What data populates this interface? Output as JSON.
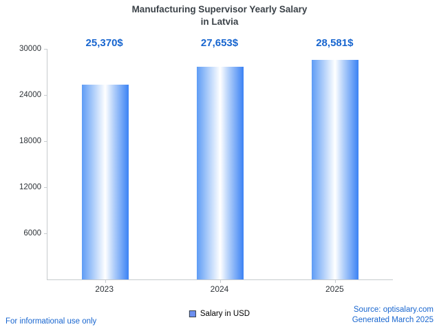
{
  "title": {
    "line1": "Manufacturing Supervisor Yearly Salary",
    "line2": "in Latvia"
  },
  "chart_data": {
    "type": "bar",
    "title": "Manufacturing Supervisor Yearly Salary in Latvia",
    "categories": [
      "2023",
      "2024",
      "2025"
    ],
    "values": [
      25370,
      27653,
      28581
    ],
    "value_labels": [
      "25,370$",
      "27,653$",
      "28,581$"
    ],
    "xlabel": "",
    "ylabel": "",
    "ylim": [
      0,
      30000
    ],
    "yticks": [
      6000,
      12000,
      18000,
      24000,
      30000
    ],
    "grid": false,
    "legend_position": "bottom",
    "legend": "Salary in USD",
    "colors": {
      "bar_edge_blue": "#3b82f4",
      "bar_center": "#ffffff",
      "value_label_blue": "#1765cf",
      "axis_gray": "#c6cacd",
      "title_gray": "#3b4248"
    }
  },
  "footer": {
    "disclaimer": "For informational use only",
    "source": "Source: optisalary.com",
    "generated": "Generated March 2025"
  }
}
